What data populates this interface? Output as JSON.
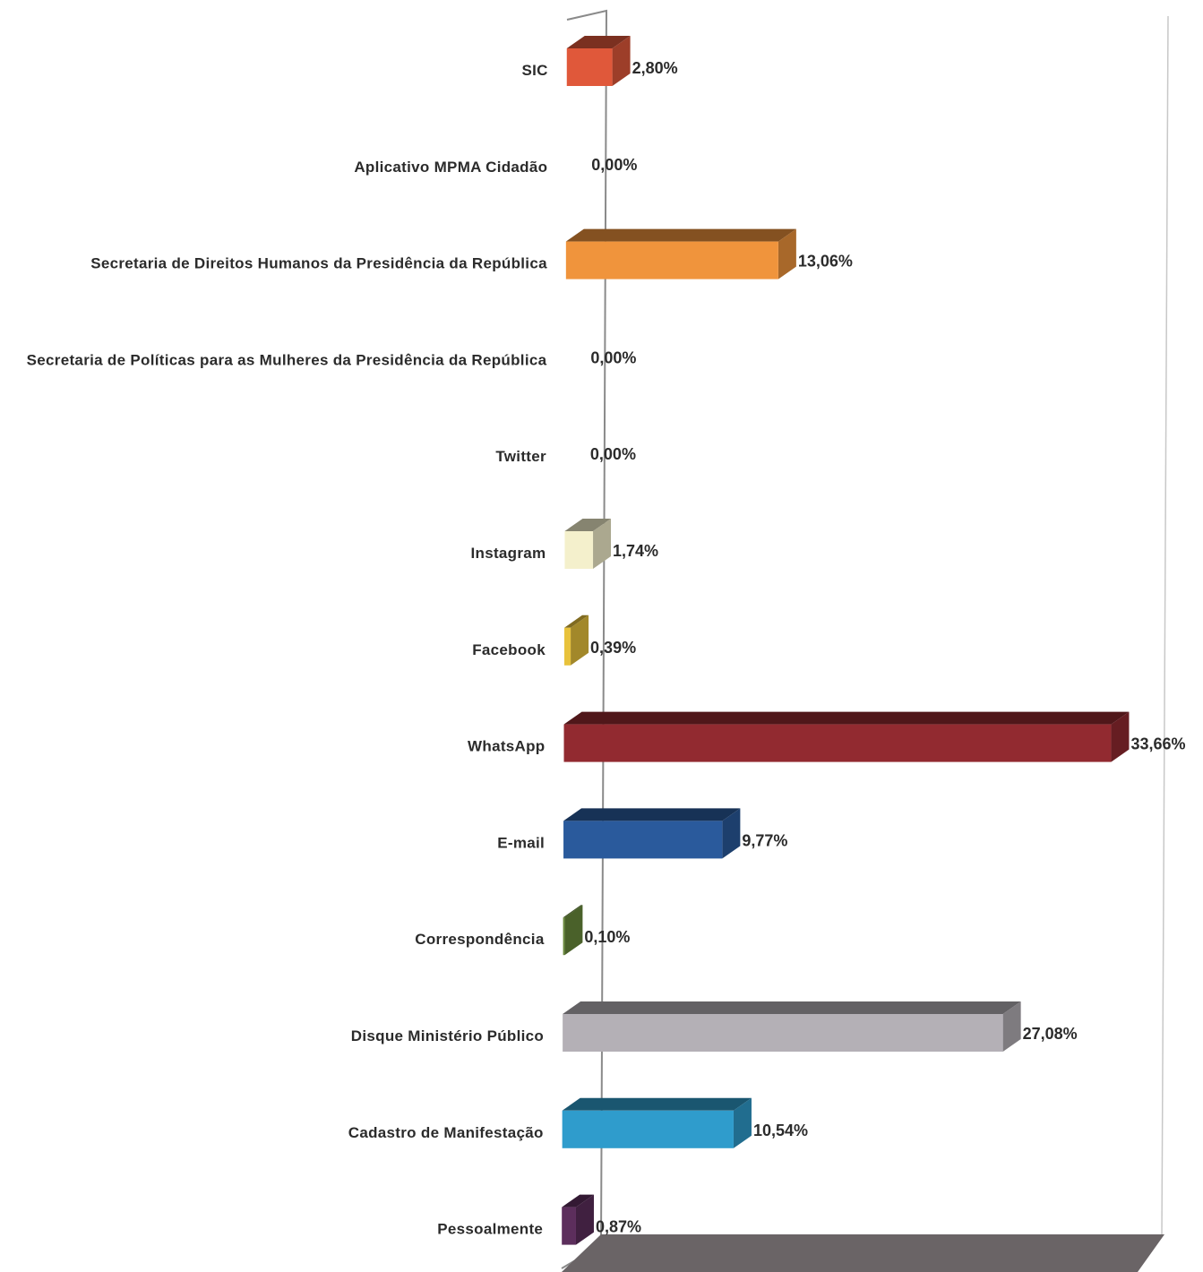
{
  "chart_data": {
    "type": "bar",
    "orientation": "horizontal",
    "style": "3d",
    "title": "",
    "xlabel": "",
    "ylabel": "",
    "xlim": [
      0,
      35
    ],
    "grid": false,
    "legend": "none",
    "categories": [
      "SIC",
      "Aplicativo MPMA Cidadão",
      "Secretaria de Direitos Humanos da Presidência da República",
      "Secretaria de Políticas para as Mulheres da Presidência da República",
      "Twitter",
      "Instagram",
      "Facebook",
      "WhatsApp",
      "E-mail",
      "Correspondência",
      "Disque Ministério Público",
      "Cadastro de Manifestação",
      "Pessoalmente"
    ],
    "values": [
      2.8,
      0.0,
      13.06,
      0.0,
      0.0,
      1.74,
      0.39,
      33.66,
      9.77,
      0.1,
      27.08,
      10.54,
      0.87
    ],
    "value_labels": [
      "2,80%",
      "0,00%",
      "13,06%",
      "0,00%",
      "0,00%",
      "1,74%",
      "0,39%",
      "33,66%",
      "9,77%",
      "0,10%",
      "27,08%",
      "10,54%",
      "0,87%"
    ],
    "colors": [
      "#e0583a",
      "#cccccc",
      "#f0943c",
      "#cccccc",
      "#cccccc",
      "#f4f0cc",
      "#e8c23c",
      "#922a30",
      "#2a5a9c",
      "#6a8a3c",
      "#b4b0b6",
      "#2f9ccc",
      "#5c2e5c"
    ]
  }
}
